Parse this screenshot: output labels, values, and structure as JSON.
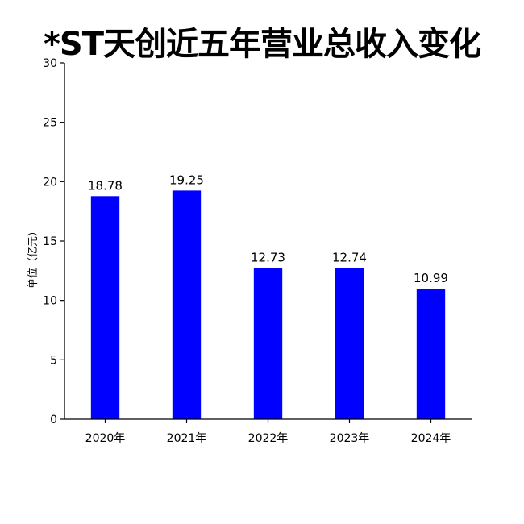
{
  "chart_data": {
    "type": "bar",
    "title": "*ST天创近五年营业总收入变化",
    "xlabel": "",
    "ylabel": "单位（亿元）",
    "categories": [
      "2020年",
      "2021年",
      "2022年",
      "2023年",
      "2024年"
    ],
    "values": [
      18.78,
      19.25,
      12.73,
      12.74,
      10.99
    ],
    "value_labels": [
      "18.78",
      "19.25",
      "12.73",
      "12.74",
      "10.99"
    ],
    "ylim": [
      0,
      30
    ],
    "yticks": [
      0,
      5,
      10,
      15,
      20,
      25,
      30
    ],
    "grid": false,
    "legend": "none",
    "bar_color": "#0000ff"
  }
}
